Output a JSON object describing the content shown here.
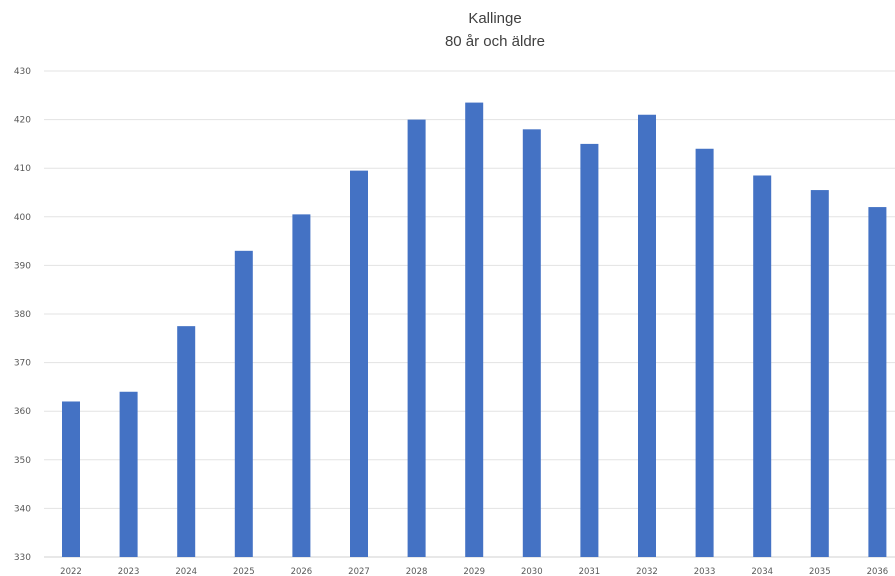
{
  "chart_data": {
    "type": "bar",
    "title": "Kallinge",
    "subtitle": "80 år och äldre",
    "xlabel": "",
    "ylabel": "",
    "categories": [
      "2022",
      "2023",
      "2024",
      "2025",
      "2026",
      "2027",
      "2028",
      "2029",
      "2030",
      "2031",
      "2032",
      "2033",
      "2034",
      "2035",
      "2036"
    ],
    "series": [
      {
        "values": [
          362,
          364,
          377.5,
          393,
          400.5,
          409.5,
          420,
          423.5,
          418,
          415,
          421,
          414,
          408.5,
          405.5,
          402
        ],
        "color": "#4472c4"
      }
    ],
    "ylim": [
      330,
      430
    ],
    "yticks": [
      330,
      340,
      350,
      360,
      370,
      380,
      390,
      400,
      410,
      420,
      430
    ],
    "grid": true,
    "legend": "none"
  }
}
